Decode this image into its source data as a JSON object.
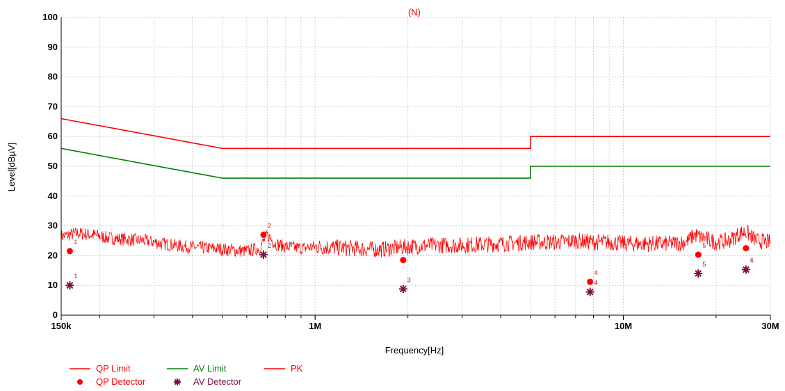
{
  "chart_data": {
    "type": "line",
    "title": "(N)",
    "xlabel": "Frequency[Hz]",
    "ylabel": "Level[dBµV]",
    "x_scale": "log",
    "xlim": [
      150000,
      30000000
    ],
    "ylim": [
      0,
      100
    ],
    "grid": true,
    "legend_placement": "bottom-left",
    "x_ticks": [
      {
        "value": 150000,
        "label": "150k"
      },
      {
        "value": 1000000,
        "label": "1M"
      },
      {
        "value": 10000000,
        "label": "10M"
      },
      {
        "value": 30000000,
        "label": "30M"
      }
    ],
    "y_ticks": [
      {
        "value": 0,
        "label": "0"
      },
      {
        "value": 10,
        "label": "10"
      },
      {
        "value": 20,
        "label": "20"
      },
      {
        "value": 30,
        "label": "30"
      },
      {
        "value": 40,
        "label": "40"
      },
      {
        "value": 50,
        "label": "50"
      },
      {
        "value": 60,
        "label": "60"
      },
      {
        "value": 70,
        "label": "70"
      },
      {
        "value": 80,
        "label": "80"
      },
      {
        "value": 90,
        "label": "90"
      },
      {
        "value": 100,
        "label": "100"
      }
    ],
    "series": [
      {
        "name": "QP Limit",
        "color": "#ff0000",
        "style": "line",
        "x": [
          150000,
          500000,
          5000000,
          5000000,
          30000000
        ],
        "y": [
          66,
          56,
          56,
          60,
          60
        ]
      },
      {
        "name": "AV Limit",
        "color": "#008000",
        "style": "line",
        "x": [
          150000,
          500000,
          5000000,
          5000000,
          30000000
        ],
        "y": [
          56,
          46,
          46,
          50,
          50
        ]
      },
      {
        "name": "PK",
        "color": "#ff0000",
        "style": "noisy-line",
        "x": [
          150000,
          170000,
          190000,
          210000,
          240000,
          280000,
          320000,
          380000,
          450000,
          520000,
          600000,
          660000,
          700000,
          740000,
          800000,
          900000,
          1000000,
          1300000,
          1600000,
          2000000,
          2500000,
          3000000,
          4000000,
          5000000,
          6000000,
          7000000,
          8000000,
          9000000,
          10000000,
          12000000,
          14000000,
          16000000,
          17000000,
          18000000,
          20000000,
          22000000,
          24000000,
          25000000,
          27000000,
          30000000
        ],
        "y": [
          26.5,
          27.5,
          27.0,
          26.0,
          25.5,
          25.0,
          24.0,
          23.0,
          22.5,
          22.0,
          21.5,
          22.5,
          27.0,
          24.0,
          23.0,
          22.5,
          23.0,
          22.5,
          22.0,
          23.0,
          23.5,
          23.5,
          24.0,
          24.5,
          24.5,
          25.0,
          24.5,
          24.5,
          24.0,
          24.0,
          24.0,
          24.5,
          27.0,
          26.0,
          24.5,
          25.0,
          27.5,
          28.0,
          25.0,
          24.5
        ]
      },
      {
        "name": "QP Detector",
        "color": "#ff0000",
        "style": "dot",
        "x": [
          160000,
          680000,
          1930000,
          7800000,
          17500000,
          25000000
        ],
        "y": [
          21.5,
          27.0,
          18.5,
          11.2,
          20.3,
          22.5
        ],
        "labels": [
          "1",
          "2",
          "3",
          "4",
          "5",
          "6"
        ]
      },
      {
        "name": "AV Detector",
        "color": "#7a1040",
        "style": "star",
        "x": [
          160000,
          680000,
          1930000,
          7800000,
          17500000,
          25000000
        ],
        "y": [
          10.0,
          20.3,
          8.8,
          7.8,
          14.0,
          15.3
        ],
        "labels": [
          "1",
          "2",
          "3",
          "4",
          "5",
          "6"
        ]
      }
    ]
  }
}
